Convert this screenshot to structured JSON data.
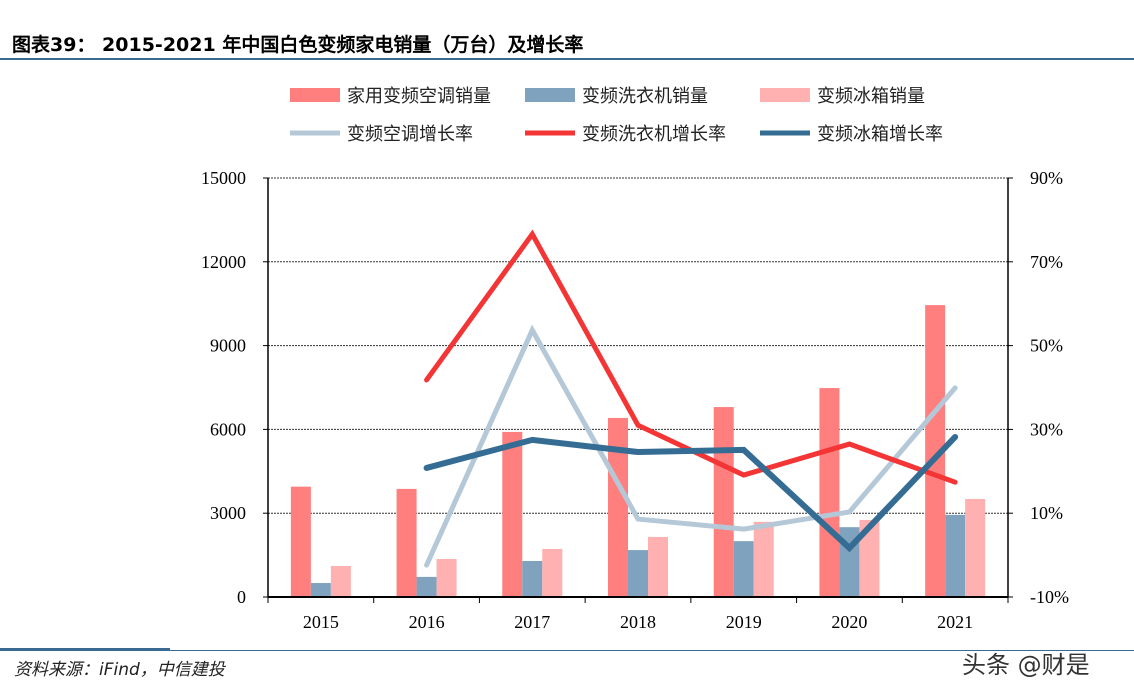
{
  "title": "图表39：  2015-2021 年中国白色变频家电销量（万台）及增长率",
  "source": "资料来源：iFind，中信建投",
  "watermark": "头条 @财是",
  "chart_data": {
    "type": "bar+line",
    "categories": [
      "2015",
      "2016",
      "2017",
      "2018",
      "2019",
      "2020",
      "2021"
    ],
    "left_axis": {
      "ylim": [
        0,
        15000
      ],
      "ticks": [
        "0",
        "3000",
        "6000",
        "9000",
        "12000",
        "15000"
      ]
    },
    "right_axis": {
      "ylim": [
        -10,
        90
      ],
      "ticks": [
        "-10%",
        "10%",
        "30%",
        "50%",
        "70%",
        "90%"
      ]
    },
    "grid": "horizontal dotted",
    "legend": "top",
    "bar_series": [
      {
        "name": "家用变频空调销量",
        "color": "#ff7f7f",
        "values": [
          3950,
          3870,
          5910,
          6410,
          6800,
          7480,
          10450
        ]
      },
      {
        "name": "变频洗衣机销量",
        "color": "#7fa3be",
        "values": [
          500,
          720,
          1290,
          1680,
          2000,
          2500,
          2940
        ]
      },
      {
        "name": "变频冰箱销量",
        "color": "#ffb0b0",
        "values": [
          1110,
          1360,
          1720,
          2150,
          2690,
          2760,
          3510
        ]
      }
    ],
    "line_series": [
      {
        "name": "变频空调增长率",
        "color": "#b4c8d8",
        "values": [
          null,
          -2.4,
          53.7,
          8.6,
          6.2,
          10.3,
          39.9
        ]
      },
      {
        "name": "变频洗衣机增长率",
        "color": "#f33535",
        "values": [
          null,
          41.8,
          76.6,
          31.0,
          19.1,
          26.5,
          17.4
        ]
      },
      {
        "name": "变频冰箱增长率",
        "color": "#356c93",
        "values": [
          null,
          20.8,
          27.5,
          24.6,
          25.1,
          1.7,
          28.2
        ]
      }
    ]
  }
}
